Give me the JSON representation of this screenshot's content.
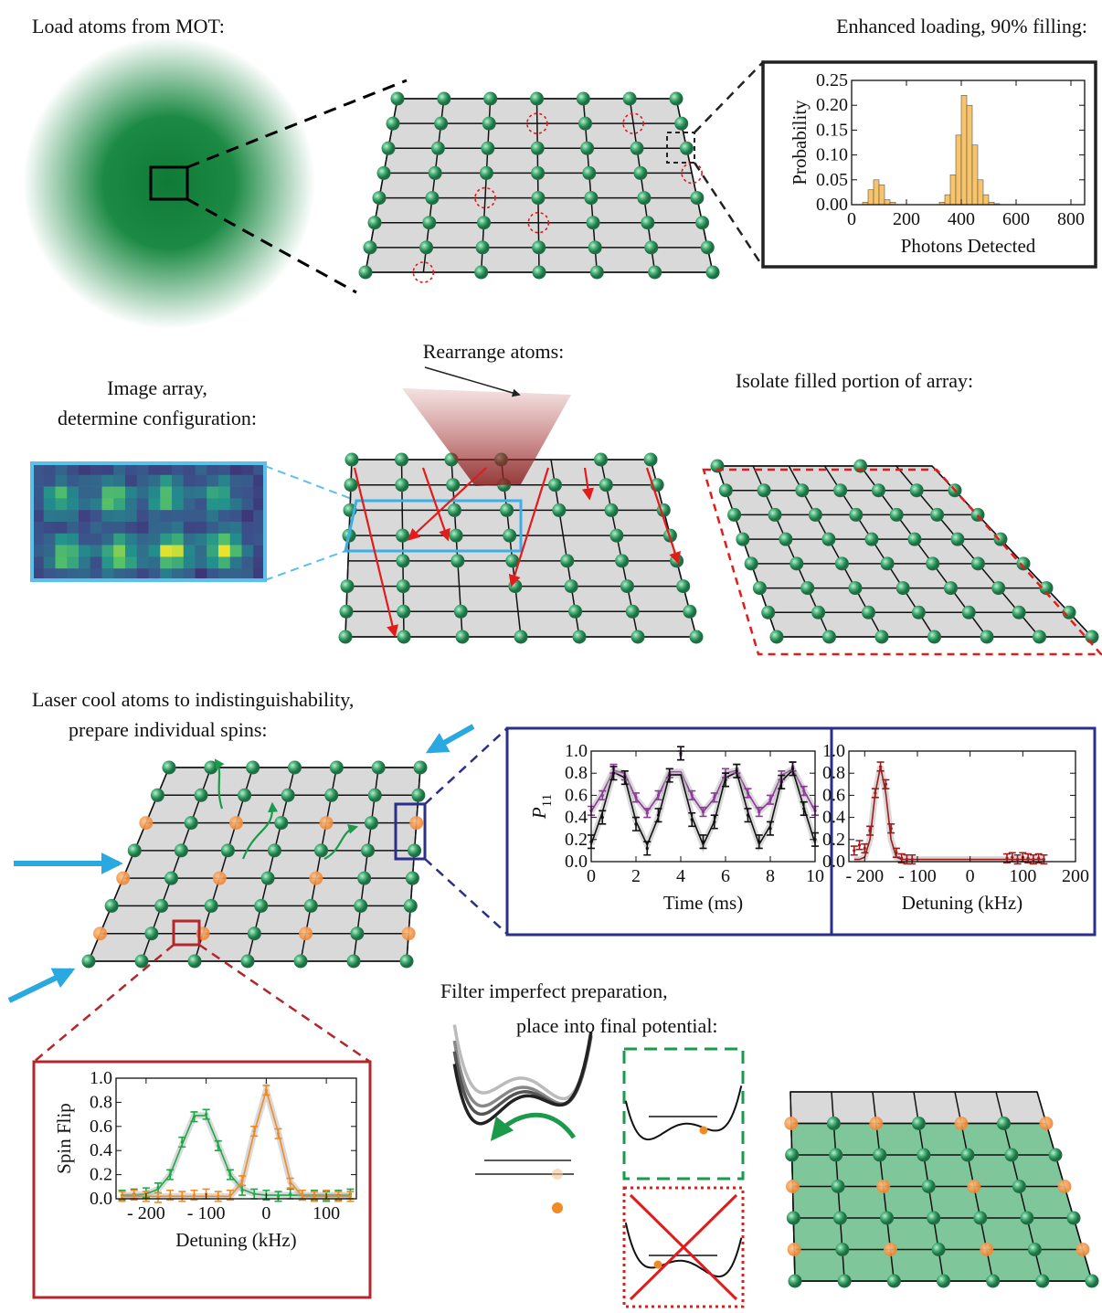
{
  "captions": {
    "load": "Load atoms from MOT:",
    "enhanced": "Enhanced loading, 90% filling:",
    "rearrange": "Rearrange atoms:",
    "image_1": "Image array,",
    "image_2": "determine configuration:",
    "isolate": "Isolate filled portion of array:",
    "cool_1": "Laser cool atoms to indistinguishability,",
    "cool_2": "prepare individual spins:",
    "filter_1": "Filter imperfect preparation,",
    "filter_2": "place into final potential:"
  },
  "chart_data": [
    {
      "type": "histogram",
      "xlabel": "Photons Detected",
      "ylabel": "Probability",
      "color": "#f7c46c",
      "bins": [
        40,
        60,
        80,
        100,
        120,
        140,
        160,
        180,
        200,
        220,
        240,
        260,
        280,
        300,
        320,
        340,
        360,
        380,
        400,
        420,
        440,
        460,
        480,
        500,
        520,
        540
      ],
      "counts": [
        0.005,
        0.03,
        0.05,
        0.04,
        0.01,
        0.005,
        0,
        0,
        0,
        0,
        0,
        0,
        0,
        0,
        0.005,
        0.02,
        0.06,
        0.14,
        0.22,
        0.2,
        0.12,
        0.05,
        0.02,
        0.005,
        0.002
      ],
      "xlim": [
        0,
        850
      ],
      "ylim": [
        0,
        0.25
      ],
      "xticks": [
        0,
        200,
        400,
        600,
        800
      ],
      "yticks": [
        {
          "value": 0,
          "label": "0.00"
        },
        {
          "value": 0.05,
          "label": "0.05"
        },
        {
          "value": 0.1,
          "label": "0.10"
        },
        {
          "value": 0.15,
          "label": "0.15"
        },
        {
          "value": 0.2,
          "label": "0.20"
        },
        {
          "value": 0.25,
          "label": "0.25"
        }
      ]
    },
    {
      "type": "scatter",
      "xlabel": "Time (ms)",
      "ylabel": "P",
      "ylabel_subscript": "11",
      "x": [
        0,
        0.5,
        1,
        1.5,
        2,
        2.5,
        3,
        3.5,
        4,
        4.5,
        5,
        5.5,
        6,
        6.5,
        7,
        7.5,
        8,
        8.5,
        9,
        9.5,
        10
      ],
      "series": [
        {
          "color": "#8e3a9a",
          "error": 0.04,
          "values": [
            0.46,
            0.6,
            0.84,
            0.78,
            0.58,
            0.44,
            0.6,
            0.8,
            0.96,
            0.6,
            0.45,
            0.58,
            0.8,
            0.84,
            0.62,
            0.45,
            0.56,
            0.78,
            0.86,
            0.64,
            0.46
          ]
        },
        {
          "color": "#111111",
          "error": 0.06,
          "values": [
            0.18,
            0.4,
            0.8,
            0.76,
            0.34,
            0.12,
            0.42,
            0.78,
            0.98,
            0.38,
            0.18,
            0.36,
            0.74,
            0.82,
            0.42,
            0.18,
            0.3,
            0.72,
            0.84,
            0.48,
            0.2
          ]
        }
      ],
      "fits": [
        {
          "color": "#8e3a9a",
          "values": [
            0.454,
            0.619,
            0.826,
            0.798,
            0.572,
            0.45,
            0.595,
            0.813,
            0.813,
            0.595,
            0.45,
            0.572,
            0.798,
            0.826,
            0.619,
            0.454,
            0.55,
            0.78,
            0.837,
            0.644,
            0.459
          ]
        },
        {
          "color": "#111111",
          "values": [
            0.156,
            0.446,
            0.808,
            0.759,
            0.364,
            0.151,
            0.403,
            0.785,
            0.786,
            0.403,
            0.151,
            0.364,
            0.759,
            0.808,
            0.446,
            0.156,
            0.325,
            0.728,
            0.827,
            0.49,
            0.166
          ]
        }
      ],
      "xlim": [
        0,
        10
      ],
      "ylim": [
        0,
        1
      ],
      "xticks": [
        0,
        2,
        4,
        6,
        8,
        10
      ],
      "yticks": [
        {
          "value": 0,
          "label": "0.0"
        },
        {
          "value": 0.2,
          "label": "0.2"
        },
        {
          "value": 0.4,
          "label": "0.4"
        },
        {
          "value": 0.6,
          "label": "0.6"
        },
        {
          "value": 0.8,
          "label": "0.8"
        },
        {
          "value": 1,
          "label": "1.0"
        }
      ]
    },
    {
      "type": "scatter",
      "xlabel": "Detuning (kHz)",
      "x": [
        -220,
        -210,
        -200,
        -190,
        -180,
        -170,
        -160,
        -150,
        -140,
        -130,
        -120,
        -110,
        70,
        80,
        90,
        100,
        110,
        120,
        130,
        140
      ],
      "series": [
        {
          "color": "#a01c1c",
          "error": 0.04,
          "values": [
            0.1,
            0.15,
            0.12,
            0.28,
            0.62,
            0.86,
            0.7,
            0.3,
            0.08,
            0.03,
            0.02,
            0.02,
            0.03,
            0.04,
            0.02,
            0.04,
            0.03,
            0.02,
            0.03,
            0.02
          ]
        }
      ],
      "fits": [
        {
          "color": "#a01c1c",
          "values": [
            0.02,
            0.02,
            0.04,
            0.2,
            0.62,
            0.86,
            0.62,
            0.2,
            0.04,
            0.02,
            0.02,
            0.02,
            0.02,
            0.02,
            0.02,
            0.02,
            0.02,
            0.02,
            0.02,
            0.02
          ]
        }
      ],
      "xlim": [
        -230,
        200
      ],
      "ylim": [
        0,
        1
      ],
      "xticks": [
        {
          "value": -200,
          "label": "- 200"
        },
        {
          "value": -100,
          "label": "- 100"
        },
        0,
        100,
        200
      ],
      "yticks": [
        {
          "value": 0,
          "label": "0.0"
        },
        {
          "value": 0.2,
          "label": "0.2"
        },
        {
          "value": 0.4,
          "label": "0.4"
        },
        {
          "value": 0.6,
          "label": "0.6"
        },
        {
          "value": 0.8,
          "label": "0.8"
        },
        {
          "value": 1,
          "label": "1.0"
        }
      ]
    },
    {
      "type": "scatter",
      "xlabel": "Detuning (kHz)",
      "ylabel": "Spin Flip",
      "x": [
        -240,
        -220,
        -200,
        -180,
        -160,
        -140,
        -120,
        -100,
        -80,
        -60,
        -40,
        -20,
        0,
        20,
        40,
        60,
        80,
        100,
        120,
        140
      ],
      "series": [
        {
          "color": "#1fa84a",
          "error": 0.04,
          "values": [
            0.03,
            0.04,
            0.05,
            0.09,
            0.2,
            0.47,
            0.68,
            0.7,
            0.44,
            0.2,
            0.07,
            0.04,
            0.03,
            0.02,
            0.04,
            0.03,
            0.03,
            0.02,
            0.03,
            0.04
          ]
        },
        {
          "color": "#f08a24",
          "error": 0.04,
          "values": [
            0.02,
            0.03,
            0.02,
            0.01,
            0.03,
            0.02,
            0.03,
            0.04,
            0.02,
            0.03,
            0.15,
            0.56,
            0.9,
            0.54,
            0.13,
            0.03,
            0.02,
            0.03,
            0.02,
            0.02
          ]
        }
      ],
      "fits": [
        {
          "color": "#1fa84a",
          "values": [
            0.03,
            0.03,
            0.04,
            0.08,
            0.2,
            0.45,
            0.69,
            0.69,
            0.45,
            0.2,
            0.08,
            0.04,
            0.03,
            0.03,
            0.03,
            0.03,
            0.03,
            0.03,
            0.03,
            0.03
          ]
        },
        {
          "color": "#f08a24",
          "values": [
            0.02,
            0.02,
            0.02,
            0.02,
            0.02,
            0.02,
            0.02,
            0.02,
            0.02,
            0.02,
            0.14,
            0.55,
            0.9,
            0.55,
            0.14,
            0.02,
            0.02,
            0.02,
            0.02,
            0.02
          ]
        }
      ],
      "xlim": [
        -250,
        150
      ],
      "ylim": [
        0,
        1
      ],
      "xticks": [
        {
          "value": -200,
          "label": "- 200"
        },
        {
          "value": -100,
          "label": "- 100"
        },
        0,
        100
      ],
      "yticks": [
        {
          "value": 0,
          "label": "0.0"
        },
        {
          "value": 0.2,
          "label": "0.2"
        },
        {
          "value": 0.4,
          "label": "0.4"
        },
        {
          "value": 0.6,
          "label": "0.6"
        },
        {
          "value": 0.8,
          "label": "0.8"
        },
        {
          "value": 1,
          "label": "1.0"
        }
      ]
    }
  ]
}
